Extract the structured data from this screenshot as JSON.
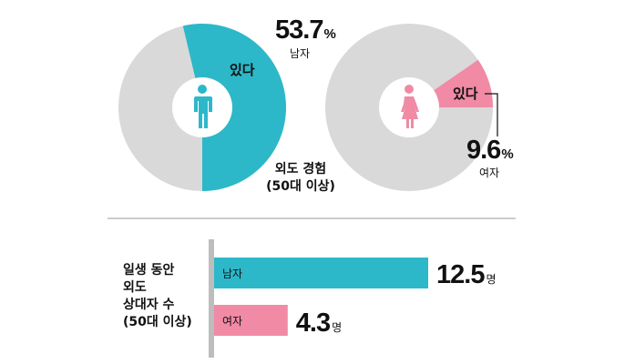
{
  "colors": {
    "male": "#2cb8c9",
    "female": "#f08aa5",
    "gray": "#d9d9d9",
    "divider": "#999999",
    "axis": "#bdbdbd"
  },
  "chart_data": [
    {
      "type": "pie",
      "group": "남자",
      "slices": [
        {
          "label": "있다",
          "value": 53.7
        },
        {
          "label": "",
          "value": 46.3
        }
      ],
      "value_text": "53.7",
      "unit": "%",
      "group_label": "남자",
      "slice_label": "있다",
      "icon": "male-icon"
    },
    {
      "type": "pie",
      "group": "여자",
      "slices": [
        {
          "label": "있다",
          "value": 9.6
        },
        {
          "label": "",
          "value": 90.4
        }
      ],
      "value_text": "9.6",
      "unit": "%",
      "group_label": "여자",
      "slice_label": "있다",
      "icon": "female-icon"
    },
    {
      "type": "bar",
      "orientation": "horizontal",
      "categories": [
        "남자",
        "여자"
      ],
      "values": [
        12.5,
        4.3
      ],
      "value_texts": [
        "12.5",
        "4.3"
      ],
      "unit": "명",
      "xlim": [
        0,
        15
      ],
      "category_label_lines": [
        "일생 동안",
        "외도",
        "상대자 수",
        "(50대 이상)"
      ]
    }
  ],
  "pie_caption": {
    "line1": "외도 경험",
    "line2": "(50대 이상)"
  }
}
